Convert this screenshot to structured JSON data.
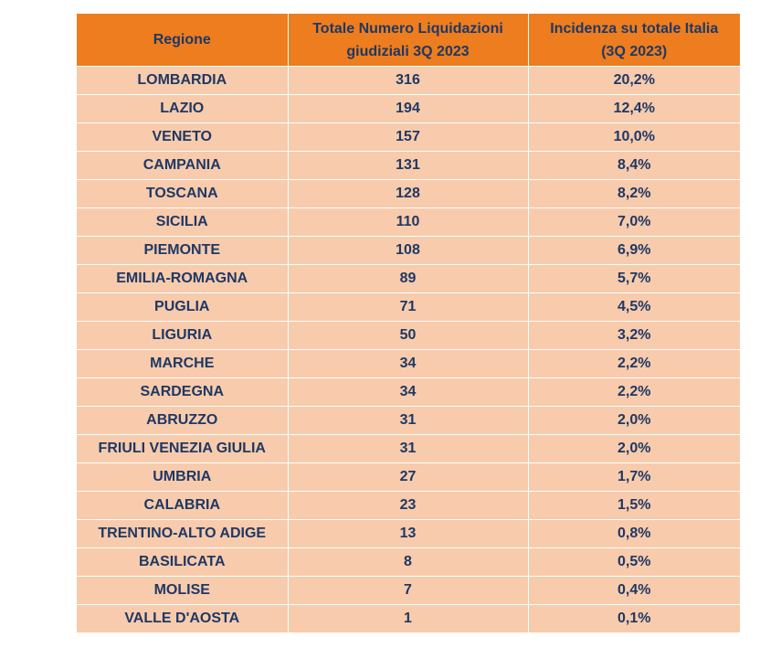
{
  "table": {
    "headers": {
      "region": "Regione",
      "count_line1": "Totale Numero Liquidazioni",
      "count_line2": "giudiziali 3Q 2023",
      "share_line1": "Incidenza su totale Italia",
      "share_line2": "(3Q 2023)"
    },
    "rows": [
      {
        "region": "LOMBARDIA",
        "count": "316",
        "share": "20,2%"
      },
      {
        "region": "LAZIO",
        "count": "194",
        "share": "12,4%"
      },
      {
        "region": "VENETO",
        "count": "157",
        "share": "10,0%"
      },
      {
        "region": "CAMPANIA",
        "count": "131",
        "share": "8,4%"
      },
      {
        "region": "TOSCANA",
        "count": "128",
        "share": "8,2%"
      },
      {
        "region": "SICILIA",
        "count": "110",
        "share": "7,0%"
      },
      {
        "region": "PIEMONTE",
        "count": "108",
        "share": "6,9%"
      },
      {
        "region": "EMILIA-ROMAGNA",
        "count": "89",
        "share": "5,7%"
      },
      {
        "region": "PUGLIA",
        "count": "71",
        "share": "4,5%"
      },
      {
        "region": "LIGURIA",
        "count": "50",
        "share": "3,2%"
      },
      {
        "region": "MARCHE",
        "count": "34",
        "share": "2,2%"
      },
      {
        "region": "SARDEGNA",
        "count": "34",
        "share": "2,2%"
      },
      {
        "region": "ABRUZZO",
        "count": "31",
        "share": "2,0%"
      },
      {
        "region": "FRIULI VENEZIA GIULIA",
        "count": "31",
        "share": "2,0%"
      },
      {
        "region": "UMBRIA",
        "count": "27",
        "share": "1,7%"
      },
      {
        "region": "CALABRIA",
        "count": "23",
        "share": "1,5%"
      },
      {
        "region": "TRENTINO-ALTO ADIGE",
        "count": "13",
        "share": "0,8%"
      },
      {
        "region": "BASILICATA",
        "count": "8",
        "share": "0,5%"
      },
      {
        "region": "MOLISE",
        "count": "7",
        "share": "0,4%"
      },
      {
        "region": "VALLE D'AOSTA",
        "count": "1",
        "share": "0,1%"
      }
    ],
    "colors": {
      "header_bg": "#ed7d1e",
      "row_bg": "#f7cbac",
      "text": "#1f3864"
    }
  }
}
